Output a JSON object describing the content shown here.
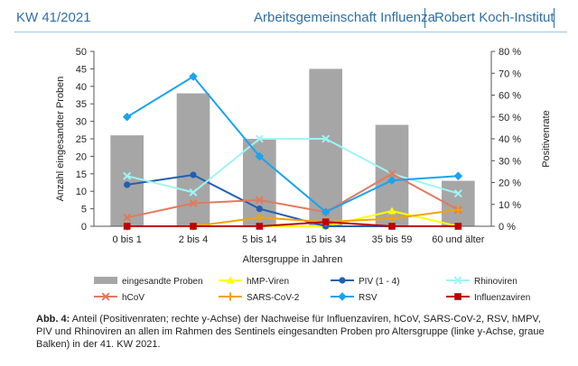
{
  "header": {
    "kw": "KW 41/2021",
    "org": "Arbeitsgemeinschaft Influenza",
    "institute": "Robert Koch-Institut"
  },
  "caption": {
    "label": "Abb. 4:",
    "text": "Anteil (Positivenraten; rechte y-Achse) der Nachweise für Influenzaviren, hCoV, SARS-CoV-2, RSV, hMPV, PIV und Rhinoviren an allen im Rahmen des Sentinels eingesandten Proben pro Altersgruppe (linke y-Achse, graue Balken) in der 41. KW 2021."
  },
  "colors": {
    "bars": "#a6a6a6",
    "hMP": "#ffff00",
    "PIV": "#1f5fb4",
    "Rhino": "#9ff4f7",
    "hCoV": "#e07a5f",
    "SARS": "#f4a300",
    "RSV": "#1aa3ee",
    "Influenza": "#c00000"
  },
  "chart_data": {
    "type": "bar",
    "xlabel": "Altersgruppe in Jahren",
    "ylabel": "Anzahl eingesandter Proben",
    "y2label": "Positivenrate",
    "categories": [
      "0 bis 1",
      "2 bis 4",
      "5 bis 14",
      "15 bis 34",
      "35 bis 59",
      "60 und älter"
    ],
    "ylim": [
      0,
      50
    ],
    "yticks": [
      "0",
      "5",
      "10",
      "15",
      "20",
      "25",
      "30",
      "35",
      "40",
      "45",
      "50"
    ],
    "y2lim": [
      0,
      80
    ],
    "y2ticks": [
      "0 %",
      "10 %",
      "20 %",
      "30 %",
      "40 %",
      "50 %",
      "60 %",
      "70 %",
      "80 %"
    ],
    "bars": {
      "name": "eingesandte Proben",
      "values": [
        26,
        38,
        25,
        45,
        29,
        13
      ]
    },
    "series": [
      {
        "name": "hMP-Viren",
        "key": "hMP",
        "marker": "triangle",
        "values": [
          0,
          0,
          0,
          0,
          7,
          0
        ]
      },
      {
        "name": "PIV (1 - 4)",
        "key": "PIV",
        "marker": "circle",
        "values": [
          19,
          23.5,
          8,
          0,
          0,
          0
        ]
      },
      {
        "name": "Rhinoviren",
        "key": "Rhino",
        "marker": "x",
        "values": [
          23,
          15.5,
          40,
          40,
          24,
          15
        ]
      },
      {
        "name": "hCoV",
        "key": "hCoV",
        "marker": "x",
        "values": [
          4,
          10.5,
          12,
          6.5,
          24,
          7.5
        ]
      },
      {
        "name": "SARS-CoV-2",
        "key": "SARS",
        "marker": "plus",
        "values": [
          0,
          0,
          4,
          2,
          3.5,
          7.5
        ]
      },
      {
        "name": "RSV",
        "key": "RSV",
        "marker": "diamond",
        "values": [
          50,
          68.5,
          32,
          6.5,
          21,
          23
        ]
      },
      {
        "name": "Influenzaviren",
        "key": "Influenza",
        "marker": "square",
        "values": [
          0,
          0,
          0,
          2,
          0,
          0
        ]
      }
    ],
    "legend": "bottom",
    "grid": false
  }
}
